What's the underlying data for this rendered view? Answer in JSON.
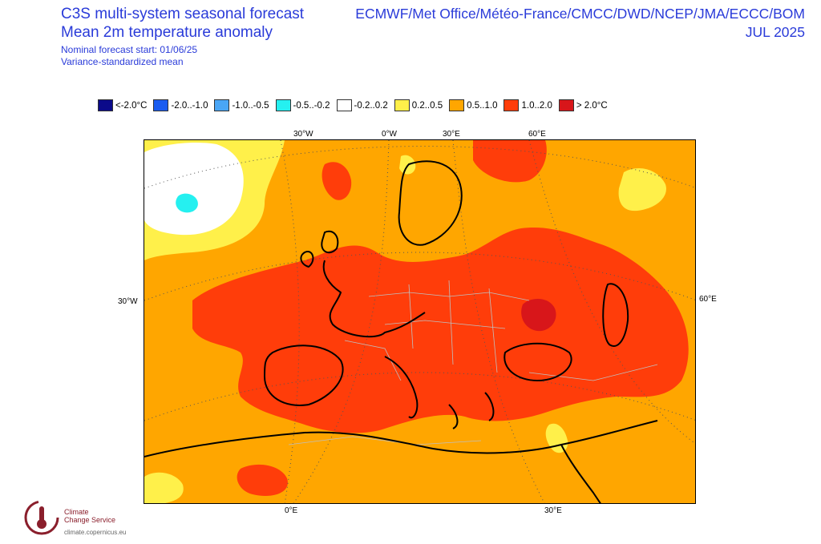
{
  "header": {
    "title_line1": "C3S multi-system seasonal forecast",
    "title_line2": "Mean 2m temperature anomaly",
    "forecast_start": "Nominal forecast start: 01/06/25",
    "method": "Variance-standardized mean",
    "systems": "ECMWF/Met Office/Météo-France/CMCC/DWD/NCEP/JMA/ECCC/BOM",
    "period": "JUL 2025"
  },
  "legend": [
    {
      "label": "<-2.0°C",
      "color": "#0b0a8a"
    },
    {
      "label": "-2.0..-1.0",
      "color": "#1a5cf0"
    },
    {
      "label": "-1.0..-0.5",
      "color": "#4aa6f5"
    },
    {
      "label": "-0.5..-0.2",
      "color": "#25f0f0"
    },
    {
      "label": "-0.2..0.2",
      "color": "#ffffff"
    },
    {
      "label": "0.2..0.5",
      "color": "#fff04a"
    },
    {
      "label": "0.5..1.0",
      "color": "#ffa600"
    },
    {
      "label": "1.0..2.0",
      "color": "#ff3d0a"
    },
    {
      "label": "> 2.0°C",
      "color": "#d8161a"
    }
  ],
  "axis_labels": {
    "top_30w": "30°W",
    "top_0e": "0°W",
    "top_30e": "30°E",
    "top_60e": "60°E",
    "left_30w": "30°W",
    "right_60e": "60°E",
    "bottom_0e": "0°E",
    "bottom_30e": "30°E"
  },
  "logo": {
    "line1": "Climate",
    "line2": "Change Service",
    "url": "climate.copernicus.eu",
    "mark_color": "#8a1f2c"
  },
  "colors": {
    "title_blue": "#2a3bd9",
    "coast": "#000000",
    "borders": "#bfbfbf",
    "grid": "#555555"
  }
}
